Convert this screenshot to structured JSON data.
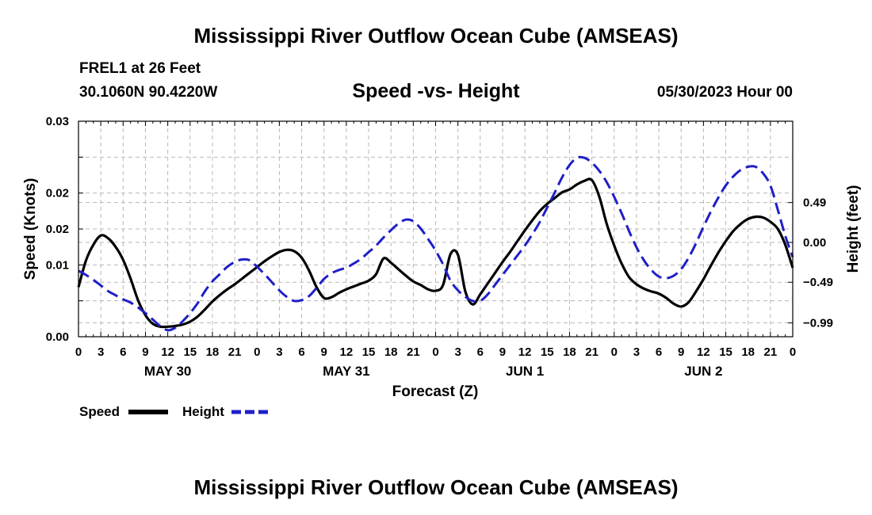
{
  "header": {
    "title": "Mississippi River Outflow Ocean Cube (AMSEAS)",
    "station": "FREL1 at 26 Feet",
    "coords": "30.1060N  90.4220W",
    "subtitle": "Speed -vs- Height",
    "datetime": "05/30/2023 Hour 00",
    "footer_title": "Mississippi River Outflow Ocean Cube (AMSEAS)"
  },
  "legend": {
    "speed_label": "Speed",
    "height_label": "Height"
  },
  "colors": {
    "speed": "#000000",
    "height": "#1f1fc8",
    "grid": "#b8b8b8"
  },
  "chart_data": {
    "type": "line",
    "title": "Speed -vs- Height",
    "xlabel": "Forecast (Z)",
    "ylabel": "Speed (Knots)",
    "y2label": "Height (feet)",
    "xlim": [
      0,
      96
    ],
    "ylim": [
      0.0,
      0.03
    ],
    "y2lim": [
      -1.16,
      1.49
    ],
    "x_ticks": [
      0,
      3,
      6,
      9,
      12,
      15,
      18,
      21,
      24,
      27,
      30,
      33,
      36,
      39,
      42,
      45,
      48,
      51,
      54,
      57,
      60,
      63,
      66,
      69,
      72,
      75,
      78,
      81,
      84,
      87,
      90,
      93,
      96
    ],
    "x_tick_labels": [
      "0",
      "3",
      "6",
      "9",
      "12",
      "15",
      "18",
      "21",
      "0",
      "3",
      "6",
      "9",
      "12",
      "15",
      "18",
      "21",
      "0",
      "3",
      "6",
      "9",
      "12",
      "15",
      "18",
      "21",
      "0",
      "3",
      "6",
      "9",
      "12",
      "15",
      "18",
      "21",
      "0"
    ],
    "y_ticks": [
      0.0,
      0.005,
      0.01,
      0.015,
      0.02,
      0.025,
      0.03
    ],
    "y_tick_labels": [
      "0.00",
      "",
      "0.01",
      "",
      "0.02",
      "",
      "0.03"
    ],
    "y_label_ticks": [
      0.0,
      0.01,
      0.015,
      0.02,
      0.03
    ],
    "y_label_texts": [
      "0.00",
      "0.01",
      "0.02",
      "0.02",
      "0.03"
    ],
    "y2_ticks": [
      0.49,
      0.0,
      -0.49,
      -0.99
    ],
    "y2_tick_labels": [
      "0.49",
      "0.00",
      "−0.49",
      "−0.99"
    ],
    "day_labels": [
      {
        "x": 12,
        "label": "MAY 30"
      },
      {
        "x": 36,
        "label": "MAY 31"
      },
      {
        "x": 60,
        "label": "JUN 1"
      },
      {
        "x": 84,
        "label": "JUN 2"
      }
    ],
    "series": [
      {
        "name": "Speed",
        "axis": "left",
        "style": "solid",
        "x": [
          0,
          1,
          2,
          3,
          4,
          5,
          6,
          7,
          8,
          9,
          10,
          11,
          12,
          13,
          14,
          15,
          16,
          17,
          18,
          19,
          20,
          21,
          22,
          23,
          24,
          25,
          26,
          27,
          28,
          29,
          30,
          31,
          32,
          33,
          34,
          35,
          36,
          37,
          38,
          39,
          40,
          41,
          42,
          43,
          44,
          45,
          46,
          47,
          48,
          49,
          50,
          51,
          52,
          53,
          54,
          55,
          56,
          57,
          58,
          59,
          60,
          61,
          62,
          63,
          64,
          65,
          66,
          67,
          68,
          69,
          70,
          71,
          72,
          73,
          74,
          75,
          76,
          77,
          78,
          79,
          80,
          81,
          82,
          83,
          84,
          85,
          86,
          87,
          88,
          89,
          90,
          91,
          92,
          93,
          94,
          95,
          96
        ],
        "values": [
          0.0069,
          0.0106,
          0.0128,
          0.0141,
          0.0137,
          0.0125,
          0.0107,
          0.0081,
          0.0051,
          0.003,
          0.0018,
          0.0014,
          0.0014,
          0.0015,
          0.0017,
          0.0021,
          0.0028,
          0.0038,
          0.0049,
          0.0058,
          0.0066,
          0.0073,
          0.0081,
          0.0089,
          0.0097,
          0.0105,
          0.0112,
          0.0118,
          0.0121,
          0.0119,
          0.011,
          0.0092,
          0.0069,
          0.0054,
          0.0055,
          0.0061,
          0.0066,
          0.007,
          0.0074,
          0.0078,
          0.0087,
          0.0109,
          0.0103,
          0.0094,
          0.0085,
          0.0077,
          0.0072,
          0.0066,
          0.0064,
          0.0072,
          0.0115,
          0.0114,
          0.0063,
          0.0045,
          0.0059,
          0.0074,
          0.0089,
          0.0104,
          0.0118,
          0.0133,
          0.0148,
          0.0162,
          0.0175,
          0.0185,
          0.0193,
          0.0201,
          0.0205,
          0.0212,
          0.0217,
          0.0218,
          0.0195,
          0.0157,
          0.0127,
          0.0102,
          0.0083,
          0.0073,
          0.0067,
          0.0063,
          0.006,
          0.0054,
          0.0046,
          0.0042,
          0.0048,
          0.0063,
          0.008,
          0.0099,
          0.0117,
          0.0133,
          0.0147,
          0.0157,
          0.0164,
          0.0167,
          0.0166,
          0.016,
          0.015,
          0.0128,
          0.0096
        ]
      },
      {
        "name": "Height",
        "axis": "right",
        "style": "dashed",
        "x": [
          0,
          1,
          2,
          3,
          4,
          5,
          6,
          7,
          8,
          9,
          10,
          11,
          12,
          13,
          14,
          15,
          16,
          17,
          18,
          19,
          20,
          21,
          22,
          23,
          24,
          25,
          26,
          27,
          28,
          29,
          30,
          31,
          32,
          33,
          34,
          35,
          36,
          37,
          38,
          39,
          40,
          41,
          42,
          43,
          44,
          45,
          46,
          47,
          48,
          49,
          50,
          51,
          52,
          53,
          54,
          55,
          56,
          57,
          58,
          59,
          60,
          61,
          62,
          63,
          64,
          65,
          66,
          67,
          68,
          69,
          70,
          71,
          72,
          73,
          74,
          75,
          76,
          77,
          78,
          79,
          80,
          81,
          82,
          83,
          84,
          85,
          86,
          87,
          88,
          89,
          90,
          91,
          92,
          93,
          94,
          95,
          96
        ],
        "values": [
          -0.35,
          -0.4,
          -0.46,
          -0.53,
          -0.6,
          -0.65,
          -0.7,
          -0.74,
          -0.8,
          -0.87,
          -0.95,
          -1.03,
          -1.08,
          -1.05,
          -0.97,
          -0.87,
          -0.75,
          -0.6,
          -0.48,
          -0.39,
          -0.3,
          -0.24,
          -0.21,
          -0.22,
          -0.3,
          -0.39,
          -0.49,
          -0.59,
          -0.67,
          -0.72,
          -0.71,
          -0.66,
          -0.56,
          -0.45,
          -0.38,
          -0.34,
          -0.31,
          -0.26,
          -0.2,
          -0.12,
          -0.04,
          0.06,
          0.15,
          0.23,
          0.28,
          0.26,
          0.17,
          0.04,
          -0.1,
          -0.27,
          -0.47,
          -0.59,
          -0.67,
          -0.72,
          -0.72,
          -0.64,
          -0.52,
          -0.4,
          -0.28,
          -0.16,
          -0.04,
          0.1,
          0.25,
          0.43,
          0.61,
          0.8,
          0.95,
          1.04,
          1.04,
          0.98,
          0.88,
          0.74,
          0.56,
          0.36,
          0.14,
          -0.06,
          -0.22,
          -0.34,
          -0.42,
          -0.44,
          -0.41,
          -0.33,
          -0.19,
          -0.01,
          0.19,
          0.38,
          0.55,
          0.7,
          0.81,
          0.89,
          0.93,
          0.93,
          0.85,
          0.7,
          0.4,
          0.08,
          -0.18
        ]
      }
    ]
  }
}
